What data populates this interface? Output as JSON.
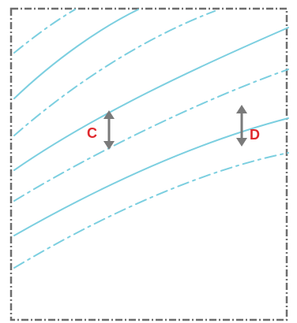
{
  "colors": {
    "border": "#6d6d6d",
    "line": "#7ccfe0",
    "arrow": "#7a7a7a",
    "label": "#e0282d",
    "background": "#ffffff"
  },
  "labels": {
    "c": "C",
    "d": "D"
  }
}
